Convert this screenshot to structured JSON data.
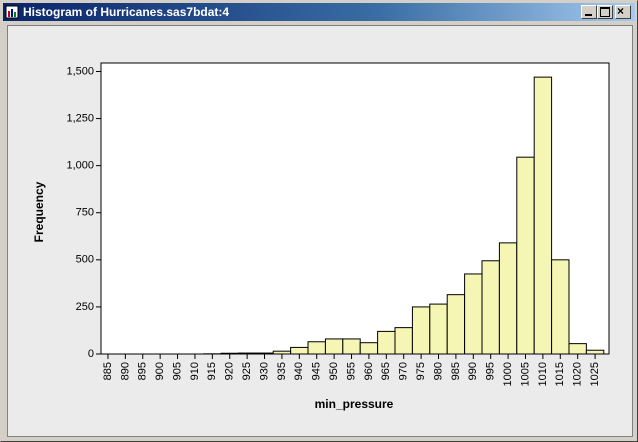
{
  "window": {
    "title": "Histogram of Hurricanes.sas7bdat:4"
  },
  "chart_data": {
    "type": "histogram",
    "xlabel": "min_pressure",
    "ylabel": "Frequency",
    "bins": [
      882.5,
      887.5,
      892.5,
      897.5,
      902.5,
      907.5,
      912.5,
      917.5,
      922.5,
      927.5,
      932.5,
      937.5,
      942.5,
      947.5,
      952.5,
      957.5,
      962.5,
      967.5,
      972.5,
      977.5,
      982.5,
      987.5,
      992.5,
      997.5,
      1002.5,
      1007.5,
      1012.5,
      1017.5,
      1022.5,
      1027.5
    ],
    "values": [
      0,
      0,
      0,
      0,
      0,
      0,
      1,
      4,
      5,
      5,
      15,
      35,
      65,
      80,
      80,
      60,
      120,
      140,
      250,
      265,
      315,
      425,
      495,
      590,
      1045,
      1470,
      500,
      55,
      20
    ],
    "color": "#f5f5b4",
    "xlim": [
      883,
      1029
    ],
    "ylim": [
      0,
      1545
    ],
    "xticks": [
      885,
      890,
      895,
      900,
      905,
      910,
      915,
      920,
      925,
      930,
      935,
      940,
      945,
      950,
      955,
      960,
      965,
      970,
      975,
      980,
      985,
      990,
      995,
      1000,
      1005,
      1010,
      1015,
      1020,
      1025
    ],
    "yticks": [
      0,
      250,
      500,
      750,
      {
        "value": 1000,
        "label": "1,000"
      },
      {
        "value": 1250,
        "label": "1,250"
      },
      {
        "value": 1500,
        "label": "1,500"
      }
    ]
  }
}
